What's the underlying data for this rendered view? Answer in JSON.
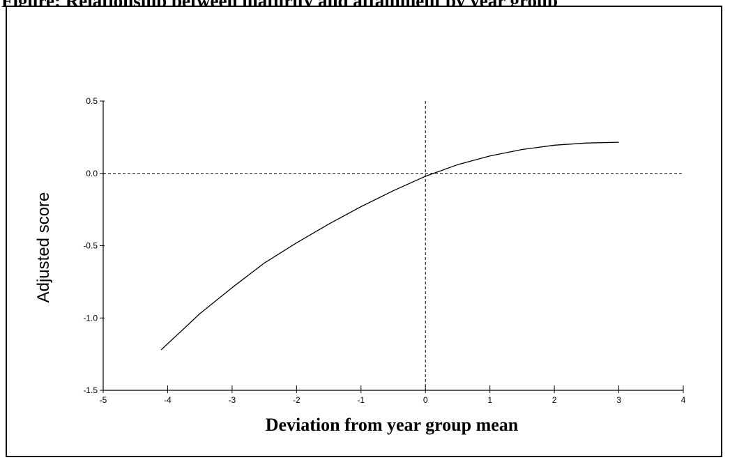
{
  "chart_data": {
    "type": "line",
    "title": "Figure: Relationship between maturity and attainment by year group",
    "xlabel": "Deviation from year group mean",
    "ylabel": "Adjusted score",
    "xlim": [
      -5,
      4
    ],
    "ylim": [
      -1.5,
      0.5
    ],
    "x_ticks": [
      -5,
      -4,
      -3,
      -2,
      -1,
      0,
      1,
      2,
      3,
      4
    ],
    "x_tick_labels": [
      "-5",
      "-4",
      "-3",
      "-2",
      "-1",
      "0",
      "1",
      "2",
      "3",
      "4"
    ],
    "y_ticks": [
      0.5,
      0.0,
      -0.5,
      -1.0,
      -1.5
    ],
    "y_tick_labels": [
      "0.5",
      "0.0",
      "-0.5",
      "-1.0",
      "-1.5"
    ],
    "reference_lines": {
      "x": 0,
      "y": 0
    },
    "grid": false,
    "series": [
      {
        "x": [
          -4.1,
          -3.5,
          -3.0,
          -2.5,
          -2.0,
          -1.5,
          -1.0,
          -0.5,
          0.0,
          0.5,
          1.0,
          1.5,
          2.0,
          2.5,
          3.0
        ],
        "y": [
          -1.22,
          -0.97,
          -0.79,
          -0.62,
          -0.48,
          -0.35,
          -0.23,
          -0.12,
          -0.02,
          0.06,
          0.12,
          0.165,
          0.195,
          0.21,
          0.215
        ]
      }
    ]
  }
}
